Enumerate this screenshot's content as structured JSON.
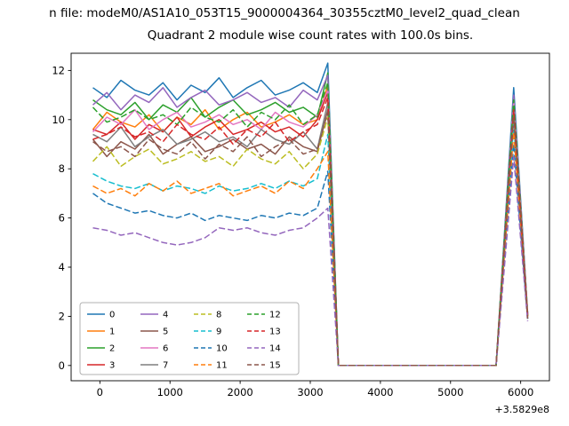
{
  "figure": {
    "suptitle": "n file: modeM0/AS1A10_053T15_9000004364_30355cztM0_level2_quad_clean",
    "background": "#ffffff",
    "x_offset_text": "+3.5829e8"
  },
  "chart_data": {
    "type": "line",
    "title": "Quadrant 2 module wise count rates with 100.0s bins.",
    "xlabel": "",
    "ylabel": "",
    "xlim": [
      -410,
      6410
    ],
    "ylim": [
      -0.62,
      12.7
    ],
    "xticks": [
      0,
      1000,
      2000,
      3000,
      4000,
      5000,
      6000
    ],
    "yticks": [
      0,
      2,
      4,
      6,
      8,
      10,
      12
    ],
    "grid": false,
    "legend_position": "lower left",
    "legend_columns": 4,
    "x": [
      -100,
      100,
      300,
      500,
      700,
      900,
      1100,
      1300,
      1500,
      1700,
      1900,
      2100,
      2300,
      2500,
      2700,
      2900,
      3100,
      3250,
      3400,
      4000,
      4500,
      5000,
      5500,
      5650,
      5900,
      6100
    ],
    "series": [
      {
        "name": "0",
        "color": "#1f77b4",
        "dash": false,
        "values": [
          11.3,
          10.9,
          11.6,
          11.2,
          11.0,
          11.5,
          10.8,
          11.4,
          11.1,
          11.7,
          10.9,
          11.3,
          11.6,
          11.0,
          11.2,
          11.5,
          11.1,
          12.3,
          0,
          0,
          0,
          0,
          0,
          0,
          11.3,
          2.1
        ]
      },
      {
        "name": "1",
        "color": "#ff7f0e",
        "dash": false,
        "values": [
          9.6,
          10.3,
          9.9,
          9.7,
          10.2,
          9.5,
          10.1,
          9.8,
          10.4,
          9.6,
          10.0,
          10.3,
          9.7,
          9.9,
          10.2,
          9.8,
          10.0,
          11.4,
          0,
          0,
          0,
          0,
          0,
          0,
          10.8,
          2.0
        ]
      },
      {
        "name": "2",
        "color": "#2ca02c",
        "dash": false,
        "values": [
          10.8,
          10.4,
          10.2,
          10.7,
          10.0,
          10.6,
          10.3,
          10.9,
          10.1,
          10.5,
          10.8,
          10.2,
          10.4,
          10.7,
          10.3,
          10.5,
          10.1,
          11.9,
          0,
          0,
          0,
          0,
          0,
          0,
          10.9,
          2.1
        ]
      },
      {
        "name": "3",
        "color": "#d62728",
        "dash": false,
        "values": [
          9.6,
          9.4,
          9.9,
          9.2,
          9.8,
          9.5,
          10.1,
          9.3,
          9.7,
          10.0,
          9.4,
          9.6,
          9.9,
          9.5,
          9.7,
          9.3,
          10.0,
          11.1,
          0,
          0,
          0,
          0,
          0,
          0,
          10.6,
          2.0
        ]
      },
      {
        "name": "4",
        "color": "#9467bd",
        "dash": false,
        "values": [
          10.6,
          11.1,
          10.4,
          11.0,
          10.7,
          11.3,
          10.5,
          10.9,
          11.2,
          10.6,
          10.8,
          11.1,
          10.7,
          10.9,
          10.5,
          11.2,
          10.8,
          11.8,
          0,
          0,
          0,
          0,
          0,
          0,
          11.0,
          2.1
        ]
      },
      {
        "name": "5",
        "color": "#8c564b",
        "dash": false,
        "values": [
          9.2,
          8.5,
          9.1,
          8.8,
          9.4,
          8.6,
          9.0,
          9.3,
          8.7,
          8.9,
          9.2,
          8.8,
          9.0,
          8.6,
          9.3,
          8.9,
          8.7,
          10.4,
          0,
          0,
          0,
          0,
          0,
          0,
          10.3,
          2.0
        ]
      },
      {
        "name": "6",
        "color": "#e377c2",
        "dash": false,
        "values": [
          9.5,
          10.1,
          9.8,
          10.4,
          9.6,
          10.0,
          10.3,
          9.7,
          9.9,
          10.2,
          9.8,
          10.0,
          9.6,
          10.3,
          9.9,
          9.7,
          10.2,
          11.2,
          0,
          0,
          0,
          0,
          0,
          0,
          10.7,
          2.1
        ]
      },
      {
        "name": "7",
        "color": "#7f7f7f",
        "dash": false,
        "values": [
          9.4,
          9.1,
          9.7,
          8.9,
          9.3,
          9.6,
          9.0,
          9.2,
          9.5,
          9.1,
          9.3,
          8.9,
          9.6,
          9.2,
          9.0,
          9.5,
          8.8,
          10.7,
          0,
          0,
          0,
          0,
          0,
          0,
          10.5,
          2.0
        ]
      },
      {
        "name": "8",
        "color": "#bcbd22",
        "dash": true,
        "values": [
          8.3,
          8.9,
          8.1,
          8.5,
          8.8,
          8.2,
          8.4,
          8.7,
          8.3,
          8.5,
          8.1,
          8.8,
          8.4,
          8.2,
          8.7,
          8.0,
          8.6,
          10.1,
          0,
          0,
          0,
          0,
          0,
          0,
          10.2,
          2.0
        ]
      },
      {
        "name": "9",
        "color": "#17becf",
        "dash": true,
        "values": [
          7.8,
          7.5,
          7.3,
          7.2,
          7.4,
          7.1,
          7.3,
          7.2,
          7.0,
          7.3,
          7.1,
          7.2,
          7.4,
          7.2,
          7.5,
          7.3,
          7.6,
          9.4,
          0,
          0,
          0,
          0,
          0,
          0,
          9.8,
          1.9
        ]
      },
      {
        "name": "10",
        "color": "#1f77b4",
        "dash": true,
        "values": [
          7.0,
          6.6,
          6.4,
          6.2,
          6.3,
          6.1,
          6.0,
          6.2,
          5.9,
          6.1,
          6.0,
          5.9,
          6.1,
          6.0,
          6.2,
          6.1,
          6.4,
          7.9,
          0,
          0,
          0,
          0,
          0,
          0,
          9.0,
          1.9
        ]
      },
      {
        "name": "11",
        "color": "#ff7f0e",
        "dash": true,
        "values": [
          7.3,
          7.0,
          7.2,
          6.9,
          7.4,
          7.1,
          7.5,
          7.0,
          7.2,
          7.4,
          6.9,
          7.1,
          7.3,
          7.0,
          7.5,
          7.2,
          8.0,
          8.7,
          0,
          0,
          0,
          0,
          0,
          0,
          9.5,
          2.0
        ]
      },
      {
        "name": "12",
        "color": "#2ca02c",
        "dash": true,
        "values": [
          10.5,
          9.9,
          10.1,
          10.4,
          10.0,
          10.2,
          9.8,
          10.5,
          10.1,
          9.9,
          10.4,
          9.7,
          10.3,
          10.0,
          10.6,
          9.8,
          10.2,
          11.5,
          0,
          0,
          0,
          0,
          0,
          0,
          10.8,
          2.0
        ]
      },
      {
        "name": "13",
        "color": "#d62728",
        "dash": true,
        "values": [
          9.2,
          9.4,
          9.7,
          9.3,
          9.5,
          9.1,
          9.8,
          9.4,
          9.2,
          9.7,
          9.0,
          9.6,
          9.3,
          9.9,
          9.1,
          9.5,
          9.8,
          10.9,
          0,
          0,
          0,
          0,
          0,
          0,
          10.4,
          2.0
        ]
      },
      {
        "name": "14",
        "color": "#9467bd",
        "dash": true,
        "values": [
          5.6,
          5.5,
          5.3,
          5.4,
          5.2,
          5.0,
          4.9,
          5.0,
          5.2,
          5.6,
          5.5,
          5.6,
          5.4,
          5.3,
          5.5,
          5.6,
          6.0,
          6.4,
          0,
          0,
          0,
          0,
          0,
          0,
          8.5,
          1.8
        ]
      },
      {
        "name": "15",
        "color": "#8c564b",
        "dash": true,
        "values": [
          9.1,
          8.7,
          8.9,
          8.5,
          9.2,
          8.8,
          8.6,
          9.1,
          8.4,
          9.0,
          8.7,
          9.3,
          8.5,
          8.9,
          9.2,
          8.6,
          8.8,
          10.3,
          0,
          0,
          0,
          0,
          0,
          0,
          10.1,
          1.9
        ]
      }
    ]
  }
}
